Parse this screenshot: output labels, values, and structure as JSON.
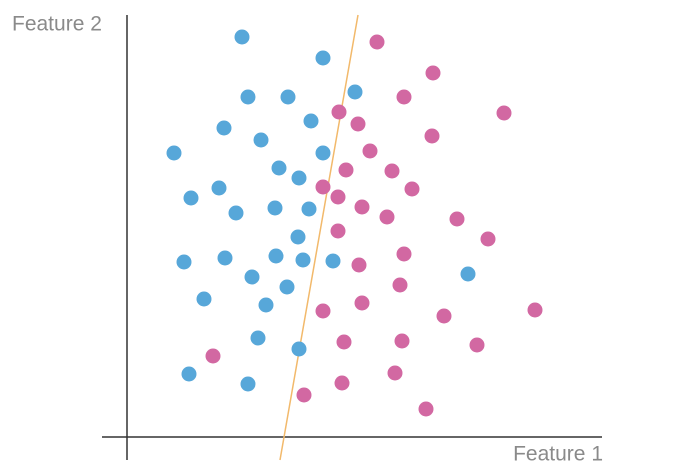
{
  "chart_data": {
    "type": "scatter",
    "x_label": "Feature 1",
    "y_label": "Feature 2",
    "xlim": [
      -25,
      475
    ],
    "ylim": [
      -23,
      422
    ],
    "series": [
      {
        "color": "#57a7d9",
        "x": [
          115,
          196,
          121,
          161,
          228,
          184,
          97,
          134,
          47,
          196,
          152,
          172,
          92,
          64,
          109,
          148,
          182,
          171,
          57,
          98,
          149,
          176,
          206,
          125,
          160,
          77,
          139,
          341,
          131,
          172,
          62,
          121
        ],
        "values": [
          400,
          379,
          340,
          340,
          345,
          316,
          309,
          297,
          284,
          284,
          269,
          259,
          249,
          239,
          224,
          229,
          228,
          200,
          175,
          179,
          181,
          177,
          176,
          160,
          150,
          138,
          132,
          163,
          99,
          88,
          63,
          53
        ]
      },
      {
        "color": "#d268a2",
        "x": [
          250,
          306,
          277,
          377,
          212,
          231,
          305,
          243,
          219,
          265,
          196,
          211,
          285,
          235,
          260,
          330,
          361,
          211,
          277,
          232,
          273,
          196,
          235,
          317,
          408,
          86,
          217,
          275,
          350,
          268,
          215,
          177,
          299
        ],
        "values": [
          395,
          364,
          340,
          324,
          325,
          313,
          301,
          286,
          267,
          266,
          250,
          240,
          248,
          230,
          220,
          218,
          198,
          206,
          183,
          172,
          152,
          126,
          134,
          121,
          127,
          81,
          95,
          96,
          92,
          64,
          54,
          42,
          28
        ]
      }
    ],
    "line": {
      "color": "#f2b96b",
      "x": [
        153,
        231
      ],
      "y": [
        -23,
        422
      ]
    }
  }
}
